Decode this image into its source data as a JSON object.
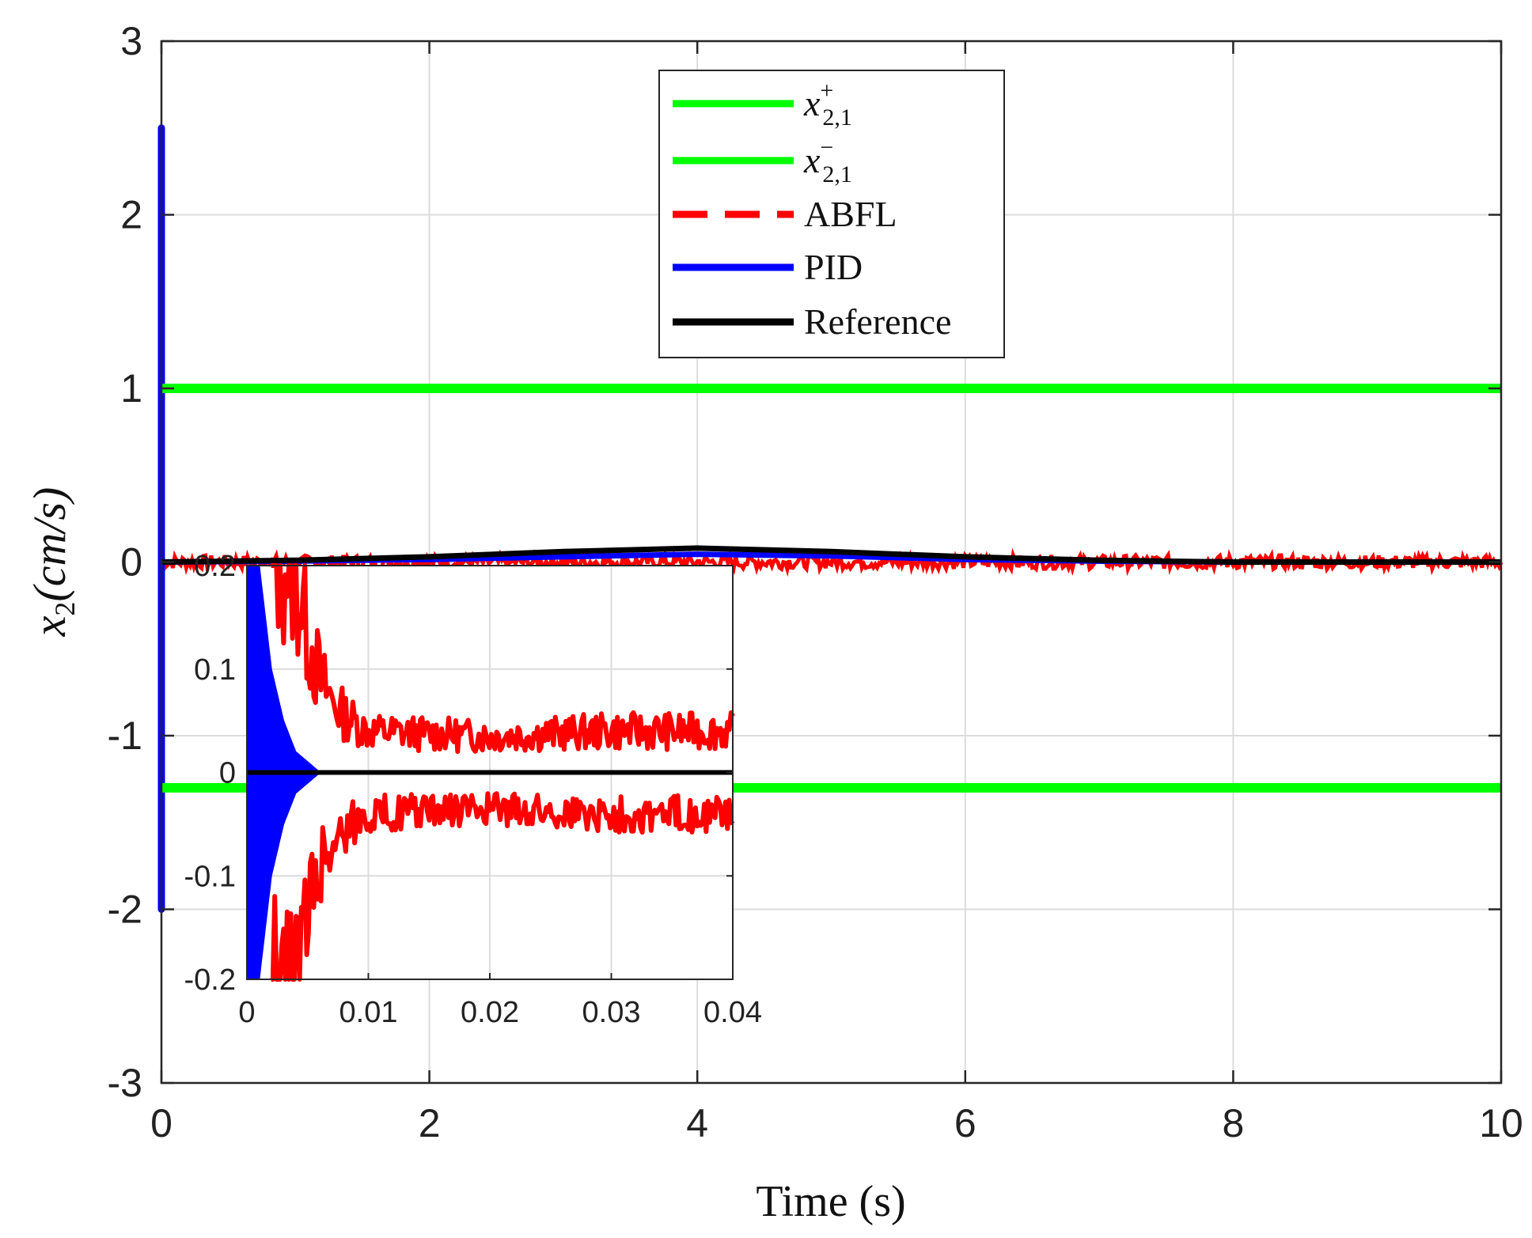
{
  "chart_data": [
    {
      "id": "main",
      "type": "line",
      "xlabel": "Time (s)",
      "ylabel": "x2(cm/s)",
      "ylabel_parts": {
        "base": "x",
        "sub": "2",
        "rest": "(cm/s)"
      },
      "xlim": [
        0,
        10
      ],
      "ylim": [
        -3,
        3
      ],
      "xticks": [
        0,
        2,
        4,
        6,
        8,
        10
      ],
      "yticks": [
        -3,
        -2,
        -1,
        0,
        1,
        2,
        3
      ],
      "xtick_labels": [
        "0",
        "2",
        "4",
        "6",
        "8",
        "10"
      ],
      "ytick_labels": [
        "-3",
        "-2",
        "-1",
        "0",
        "1",
        "2",
        "3"
      ],
      "grid": true,
      "legend_position": "top-center",
      "legend": [
        {
          "key": "x_upper",
          "label_base": "x",
          "label_sup": "+",
          "label_sub": "2,1",
          "color": "#00ff00",
          "style": "solid"
        },
        {
          "key": "x_lower",
          "label_base": "x",
          "label_sup": "−",
          "label_sub": "2,1",
          "color": "#00ff00",
          "style": "solid"
        },
        {
          "key": "abfl",
          "label": "ABFL",
          "color": "#ff0000",
          "style": "dashed"
        },
        {
          "key": "pid",
          "label": "PID",
          "color": "#0000ff",
          "style": "solid"
        },
        {
          "key": "reference",
          "label": "Reference",
          "color": "#000000",
          "style": "solid"
        }
      ],
      "series": [
        {
          "name": "x_upper",
          "x": [
            0,
            10
          ],
          "y": [
            1,
            1
          ]
        },
        {
          "name": "x_lower",
          "x": [
            0,
            10
          ],
          "y": [
            -1.3,
            -1.3
          ]
        },
        {
          "name": "Reference",
          "x": [
            0,
            1,
            2,
            3,
            4,
            5,
            6,
            7,
            8,
            9,
            10
          ],
          "y": [
            0,
            0.01,
            0.03,
            0.06,
            0.08,
            0.06,
            0.03,
            0.01,
            0,
            0,
            0
          ]
        },
        {
          "name": "PID",
          "x": [
            0,
            0.01,
            0.03,
            10
          ],
          "y_max": [
            2.5,
            0.3,
            0.02,
            0.0
          ],
          "y_min": [
            -2.0,
            -0.3,
            -0.02,
            0.0
          ]
        },
        {
          "name": "ABFL",
          "x": [
            0,
            10
          ],
          "y_center": [
            0.0,
            0.0
          ],
          "noise_amplitude": 0.04
        }
      ]
    },
    {
      "id": "inset",
      "type": "line",
      "xlim": [
        0,
        0.04
      ],
      "ylim": [
        -0.2,
        0.2
      ],
      "xticks": [
        0,
        0.01,
        0.02,
        0.03,
        0.04
      ],
      "yticks": [
        -0.2,
        -0.1,
        0,
        0.1,
        0.2
      ],
      "xtick_labels": [
        "0",
        "0.01",
        "0.02",
        "0.03",
        "0.04"
      ],
      "ytick_labels": [
        "-0.2",
        "-0.1",
        "0",
        "0.1",
        "0.2"
      ],
      "grid": true,
      "series": [
        {
          "name": "Reference",
          "x": [
            0,
            0.04
          ],
          "y": [
            0,
            0
          ]
        },
        {
          "name": "PID envelope",
          "x": [
            0,
            0.001,
            0.002,
            0.003,
            0.004,
            0.005,
            0.006
          ],
          "y_max": [
            0.3,
            0.2,
            0.1,
            0.05,
            0.02,
            0.01,
            0.0
          ]
        },
        {
          "name": "ABFL envelope",
          "x": [
            0.002,
            0.004,
            0.005,
            0.006,
            0.007,
            0.008,
            0.01,
            0.02,
            0.03,
            0.04
          ],
          "y_max": [
            0.22,
            0.2,
            0.14,
            0.09,
            0.07,
            0.055,
            0.04,
            0.035,
            0.04,
            0.04
          ]
        }
      ]
    }
  ]
}
